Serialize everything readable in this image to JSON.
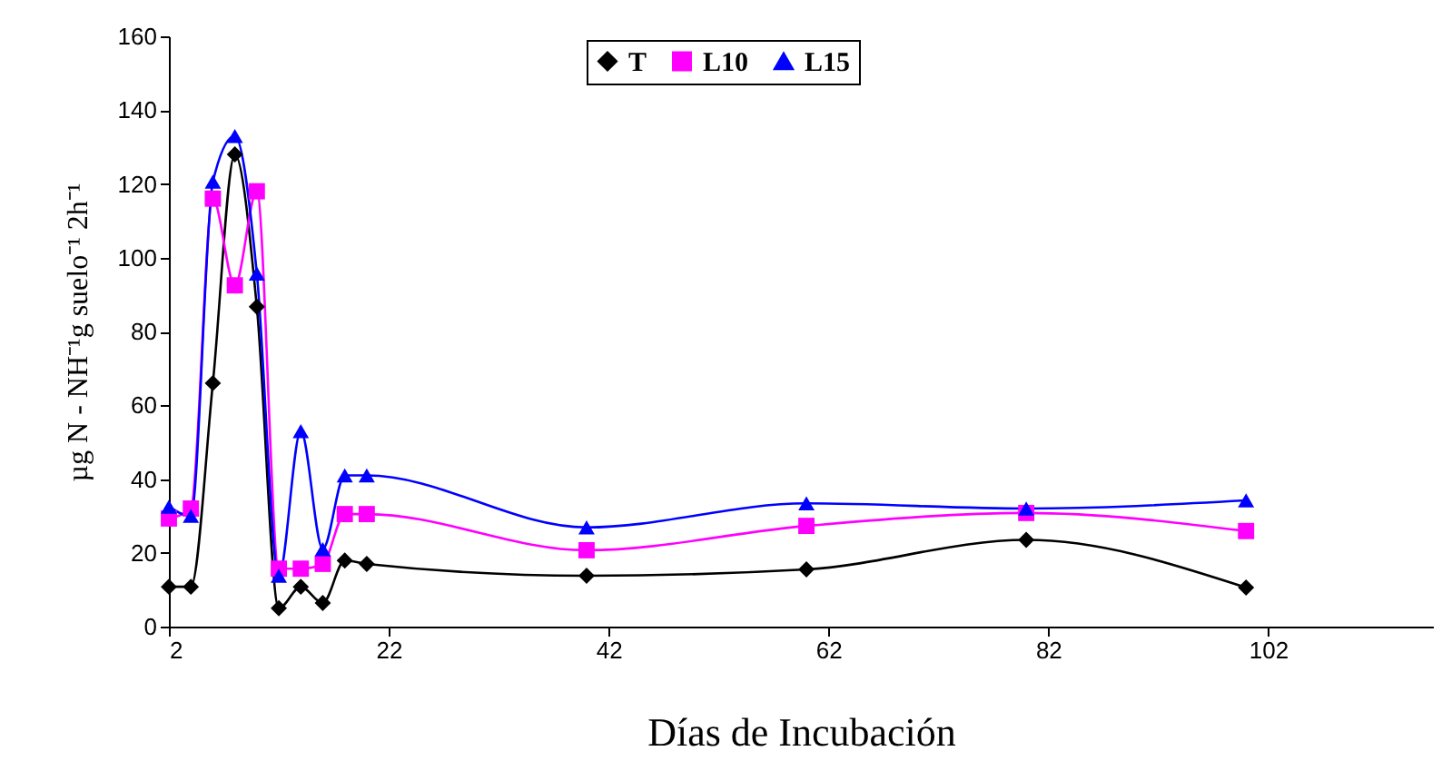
{
  "chart_data": {
    "type": "line",
    "xlabel": "Días de Incubación",
    "ylabel": "µg N - NH⁻¹g suelo⁻¹ 2h⁻¹",
    "x": [
      2,
      4,
      6,
      8,
      10,
      12,
      14,
      16,
      18,
      20,
      40,
      60,
      80,
      100
    ],
    "series": [
      {
        "name": "T",
        "color": "#000000",
        "marker": "diamond",
        "values": [
          10.8,
          10.8,
          66,
          128,
          86.7,
          5,
          10.8,
          6.4,
          17.9,
          17,
          13.8,
          15.5,
          23.5,
          10.6
        ]
      },
      {
        "name": "L10",
        "color": "#ff00ff",
        "marker": "square",
        "values": [
          29.3,
          32,
          116,
          92.5,
          118,
          15.7,
          15.7,
          17,
          30.5,
          30.5,
          20.7,
          27.3,
          30.8,
          25.9
        ]
      },
      {
        "name": "L15",
        "color": "#0000ff",
        "marker": "triangle",
        "values": [
          32.5,
          30,
          120.6,
          133,
          95.7,
          13.8,
          53,
          21,
          41,
          41,
          26.9,
          33.4,
          32,
          34.2
        ]
      }
    ],
    "xlim": [
      2,
      117
    ],
    "xticks": [
      2,
      22,
      42,
      62,
      82,
      102
    ],
    "ylim": [
      0,
      160
    ],
    "yticks": [
      0,
      20,
      40,
      60,
      80,
      100,
      120,
      140,
      160
    ],
    "grid": false,
    "legend": "top",
    "line_style": "solid"
  }
}
